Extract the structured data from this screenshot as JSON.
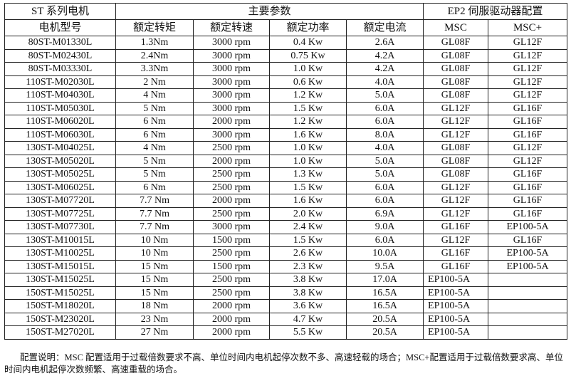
{
  "header": {
    "group1": "ST 系列电机",
    "group2": "主要参数",
    "group3": "EP2 伺服驱动器配置",
    "columns": [
      "电机型号",
      "额定转矩",
      "额定转速",
      "额定功率",
      "额定电流",
      "MSC",
      "MSC+"
    ]
  },
  "rows": [
    [
      "80ST-M01330L",
      "1.3Nm",
      "3000 rpm",
      "0.4 Kw",
      "2.6A",
      "GL08F",
      "GL12F"
    ],
    [
      "80ST-M02430L",
      "2.4Nm",
      "3000 rpm",
      "0.75 Kw",
      "4.2A",
      "GL08F",
      "GL12F"
    ],
    [
      "80ST-M03330L",
      "3.3Nm",
      "3000 rpm",
      "1.0 Kw",
      "4.2A",
      "GL08F",
      "GL12F"
    ],
    [
      "110ST-M02030L",
      "2 Nm",
      "3000 rpm",
      "0.6 Kw",
      "4.0A",
      "GL08F",
      "GL12F"
    ],
    [
      "110ST-M04030L",
      "4 Nm",
      "3000 rpm",
      "1.2 Kw",
      "5.0A",
      "GL08F",
      "GL12F"
    ],
    [
      "110ST-M05030L",
      "5 Nm",
      "3000 rpm",
      "1.5 Kw",
      "6.0A",
      "GL12F",
      "GL16F"
    ],
    [
      "110ST-M06020L",
      "6 Nm",
      "2000 rpm",
      "1.2 Kw",
      "6.0A",
      "GL12F",
      "GL16F"
    ],
    [
      "110ST-M06030L",
      "6 Nm",
      "3000 rpm",
      "1.6 Kw",
      "8.0A",
      "GL12F",
      "GL16F"
    ],
    [
      "130ST-M04025L",
      "4 Nm",
      "2500 rpm",
      "1.0 Kw",
      "4.0A",
      "GL08F",
      "GL12F"
    ],
    [
      "130ST-M05020L",
      "5 Nm",
      "2000 rpm",
      "1.0 Kw",
      "5.0A",
      "GL08F",
      "GL12F"
    ],
    [
      "130ST-M05025L",
      "5 Nm",
      "2500 rpm",
      "1.3 Kw",
      "5.0A",
      "GL08F",
      "GL16F"
    ],
    [
      "130ST-M06025L",
      "6 Nm",
      "2500 rpm",
      "1.5 Kw",
      "6.0A",
      "GL12F",
      "GL16F"
    ],
    [
      "130ST-M07720L",
      "7.7 Nm",
      "2000 rpm",
      "1.6 Kw",
      "6.0A",
      "GL12F",
      "GL16F"
    ],
    [
      "130ST-M07725L",
      "7.7 Nm",
      "2500 rpm",
      "2.0 Kw",
      "6.9A",
      "GL12F",
      "GL16F"
    ],
    [
      "130ST-M07730L",
      "7.7 Nm",
      "3000 rpm",
      "2.4 Kw",
      "9.0A",
      "GL16F",
      "EP100-5A"
    ],
    [
      "130ST-M10015L",
      "10 Nm",
      "1500 rpm",
      "1.5 Kw",
      "6.0A",
      "GL12F",
      "GL16F"
    ],
    [
      "130ST-M10025L",
      "10 Nm",
      "2500 rpm",
      "2.6 Kw",
      "10.0A",
      "GL16F",
      "EP100-5A"
    ],
    [
      "130ST-M15015L",
      "15 Nm",
      "1500 rpm",
      "2.3 Kw",
      "9.5A",
      "GL16F",
      "EP100-5A"
    ],
    [
      "130ST-M15025L",
      "15 Nm",
      "2500 rpm",
      "3.8 Kw",
      "17.0A",
      "EP100-5A",
      ""
    ],
    [
      "150ST-M15025L",
      "15 Nm",
      "2500 rpm",
      "3.8 Kw",
      "16.5A",
      "EP100-5A",
      ""
    ],
    [
      "150ST-M18020L",
      "18 Nm",
      "2000 rpm",
      "3.6 Kw",
      "16.5A",
      "EP100-5A",
      ""
    ],
    [
      "150ST-M23020L",
      "23 Nm",
      "2000 rpm",
      "4.7 Kw",
      "20.5A",
      "EP100-5A",
      ""
    ],
    [
      "150ST-M27020L",
      "27 Nm",
      "2000 rpm",
      "5.5 Kw",
      "20.5A",
      "EP100-5A",
      ""
    ]
  ],
  "note": "配置说明：MSC 配置适用于过载倍数要求不高、单位时间内电机起停次数不多、高速轻载的场合；MSC+配置适用于过载倍数要求高、单位时间内电机起停次数频繁、高速重载的场合。"
}
